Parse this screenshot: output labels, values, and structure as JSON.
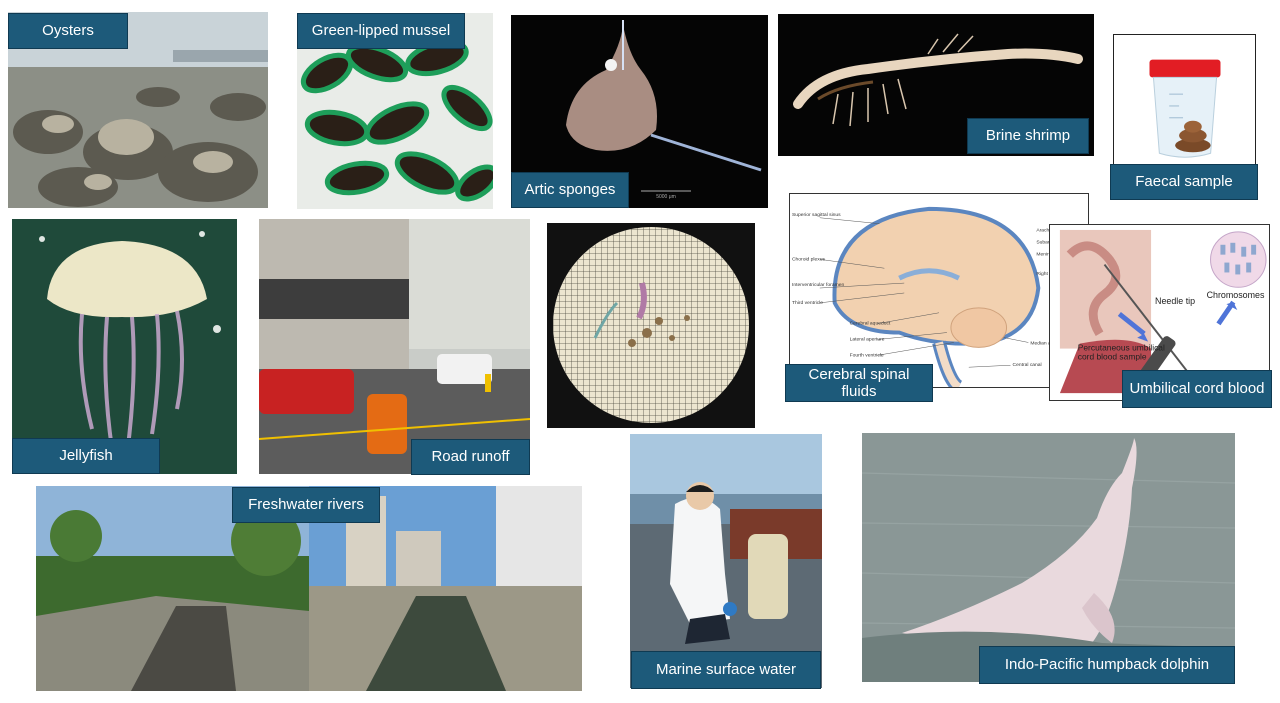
{
  "samples": {
    "oysters": "Oysters",
    "green_lipped_mussel": "Green-lipped mussel",
    "artic_sponges": "Artic sponges",
    "brine_shrimp": "Brine shrimp",
    "faecal_sample": "Faecal sample",
    "jellyfish": "Jellyfish",
    "road_runoff": "Road runoff",
    "cerebral_spinal_fluids": "Cerebral spinal fluids",
    "umbilical_cord_blood": "Umbilical cord blood",
    "freshwater_rivers": "Freshwater rivers",
    "marine_surface_water": "Marine surface water",
    "humpback_dolphin": "Indo-Pacific humpback dolphin"
  },
  "brain_diagram": {
    "superior_sagittal_sinus": "Superior sagittal sinus",
    "choroid_plexus": "Choroid plexus",
    "interventricular_foramen": "Interventricular foramen",
    "third_ventricle": "Third ventricle",
    "cerebral_aqueduct": "Cerebral aqueduct",
    "lateral_aperture": "Lateral aperture",
    "fourth_ventricle": "Fourth ventricle",
    "median_aperture": "Median aperture",
    "central_canal": "Central canal",
    "arachnoid": "Arachnoid",
    "subarachnoid": "Subarachnoid",
    "meninges": "Meninges",
    "right": "Right"
  },
  "cord_blood_diagram": {
    "needle_tip": "Needle tip",
    "chromosomes": "Chromosomes",
    "caption": "Percutaneous umbilical cord blood sample"
  },
  "micro_scale_bar": "5000 μm",
  "colors": {
    "label_bg": "#1d5a7a",
    "label_border": "#0f3a52"
  }
}
